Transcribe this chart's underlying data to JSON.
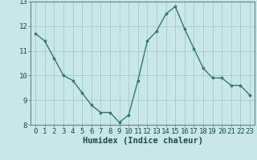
{
  "x": [
    0,
    1,
    2,
    3,
    4,
    5,
    6,
    7,
    8,
    9,
    10,
    11,
    12,
    13,
    14,
    15,
    16,
    17,
    18,
    19,
    20,
    21,
    22,
    23
  ],
  "y": [
    11.7,
    11.4,
    10.7,
    10.0,
    9.8,
    9.3,
    8.8,
    8.5,
    8.5,
    8.1,
    8.4,
    9.8,
    11.4,
    11.8,
    12.5,
    12.8,
    11.9,
    11.1,
    10.3,
    9.9,
    9.9,
    9.6,
    9.6,
    9.2
  ],
  "line_color": "#2e7b6b",
  "marker_color": "#2e7b6b",
  "bg_color": "#c8e8e8",
  "grid_color_minor": "#c0d4d4",
  "grid_color_major": "#a8c8c8",
  "spine_color": "#708080",
  "xlabel": "Humidex (Indice chaleur)",
  "xlabel_fontsize": 7.5,
  "tick_fontsize": 6.5,
  "ylim": [
    8,
    13
  ],
  "xlim": [
    -0.5,
    23.5
  ],
  "yticks": [
    8,
    9,
    10,
    11,
    12,
    13
  ],
  "xticks": [
    0,
    1,
    2,
    3,
    4,
    5,
    6,
    7,
    8,
    9,
    10,
    11,
    12,
    13,
    14,
    15,
    16,
    17,
    18,
    19,
    20,
    21,
    22,
    23
  ],
  "figsize": [
    3.2,
    2.0
  ],
  "dpi": 100
}
